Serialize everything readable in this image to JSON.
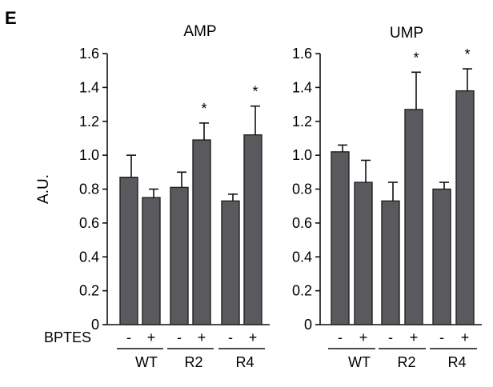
{
  "figure": {
    "panel_label": "E",
    "treatment_label": "BPTES"
  },
  "chart_data": [
    {
      "type": "bar",
      "title": "AMP",
      "ylabel": "A.U.",
      "xlabel": "",
      "ylim": [
        0,
        1.6
      ],
      "yticks": [
        "0",
        "0.2",
        "0.4",
        "0.6",
        "0.8",
        "1.0",
        "1.2",
        "1.4",
        "1.6"
      ],
      "groups": [
        "WT",
        "R2",
        "R4"
      ],
      "treatments": [
        "-",
        "+"
      ],
      "categories": [
        "WT -",
        "WT +",
        "R2 -",
        "R2 +",
        "R4 -",
        "R4 +"
      ],
      "values": [
        0.87,
        0.75,
        0.81,
        1.09,
        0.73,
        1.12
      ],
      "errors": [
        0.13,
        0.05,
        0.09,
        0.1,
        0.04,
        0.17
      ],
      "significance": [
        "",
        "",
        "",
        "*",
        "",
        "*"
      ]
    },
    {
      "type": "bar",
      "title": "UMP",
      "ylabel": "",
      "xlabel": "",
      "ylim": [
        0,
        1.6
      ],
      "yticks": [
        "0",
        "0.2",
        "0.4",
        "0.6",
        "0.8",
        "1.0",
        "1.2",
        "1.4",
        "1.6"
      ],
      "groups": [
        "WT",
        "R2",
        "R4"
      ],
      "treatments": [
        "-",
        "+"
      ],
      "categories": [
        "WT -",
        "WT +",
        "R2 -",
        "R2 +",
        "R4 -",
        "R4 +"
      ],
      "values": [
        1.02,
        0.84,
        0.73,
        1.27,
        0.8,
        1.38
      ],
      "errors": [
        0.04,
        0.13,
        0.11,
        0.22,
        0.04,
        0.13
      ],
      "significance": [
        "",
        "",
        "",
        "*",
        "",
        "*"
      ]
    }
  ]
}
